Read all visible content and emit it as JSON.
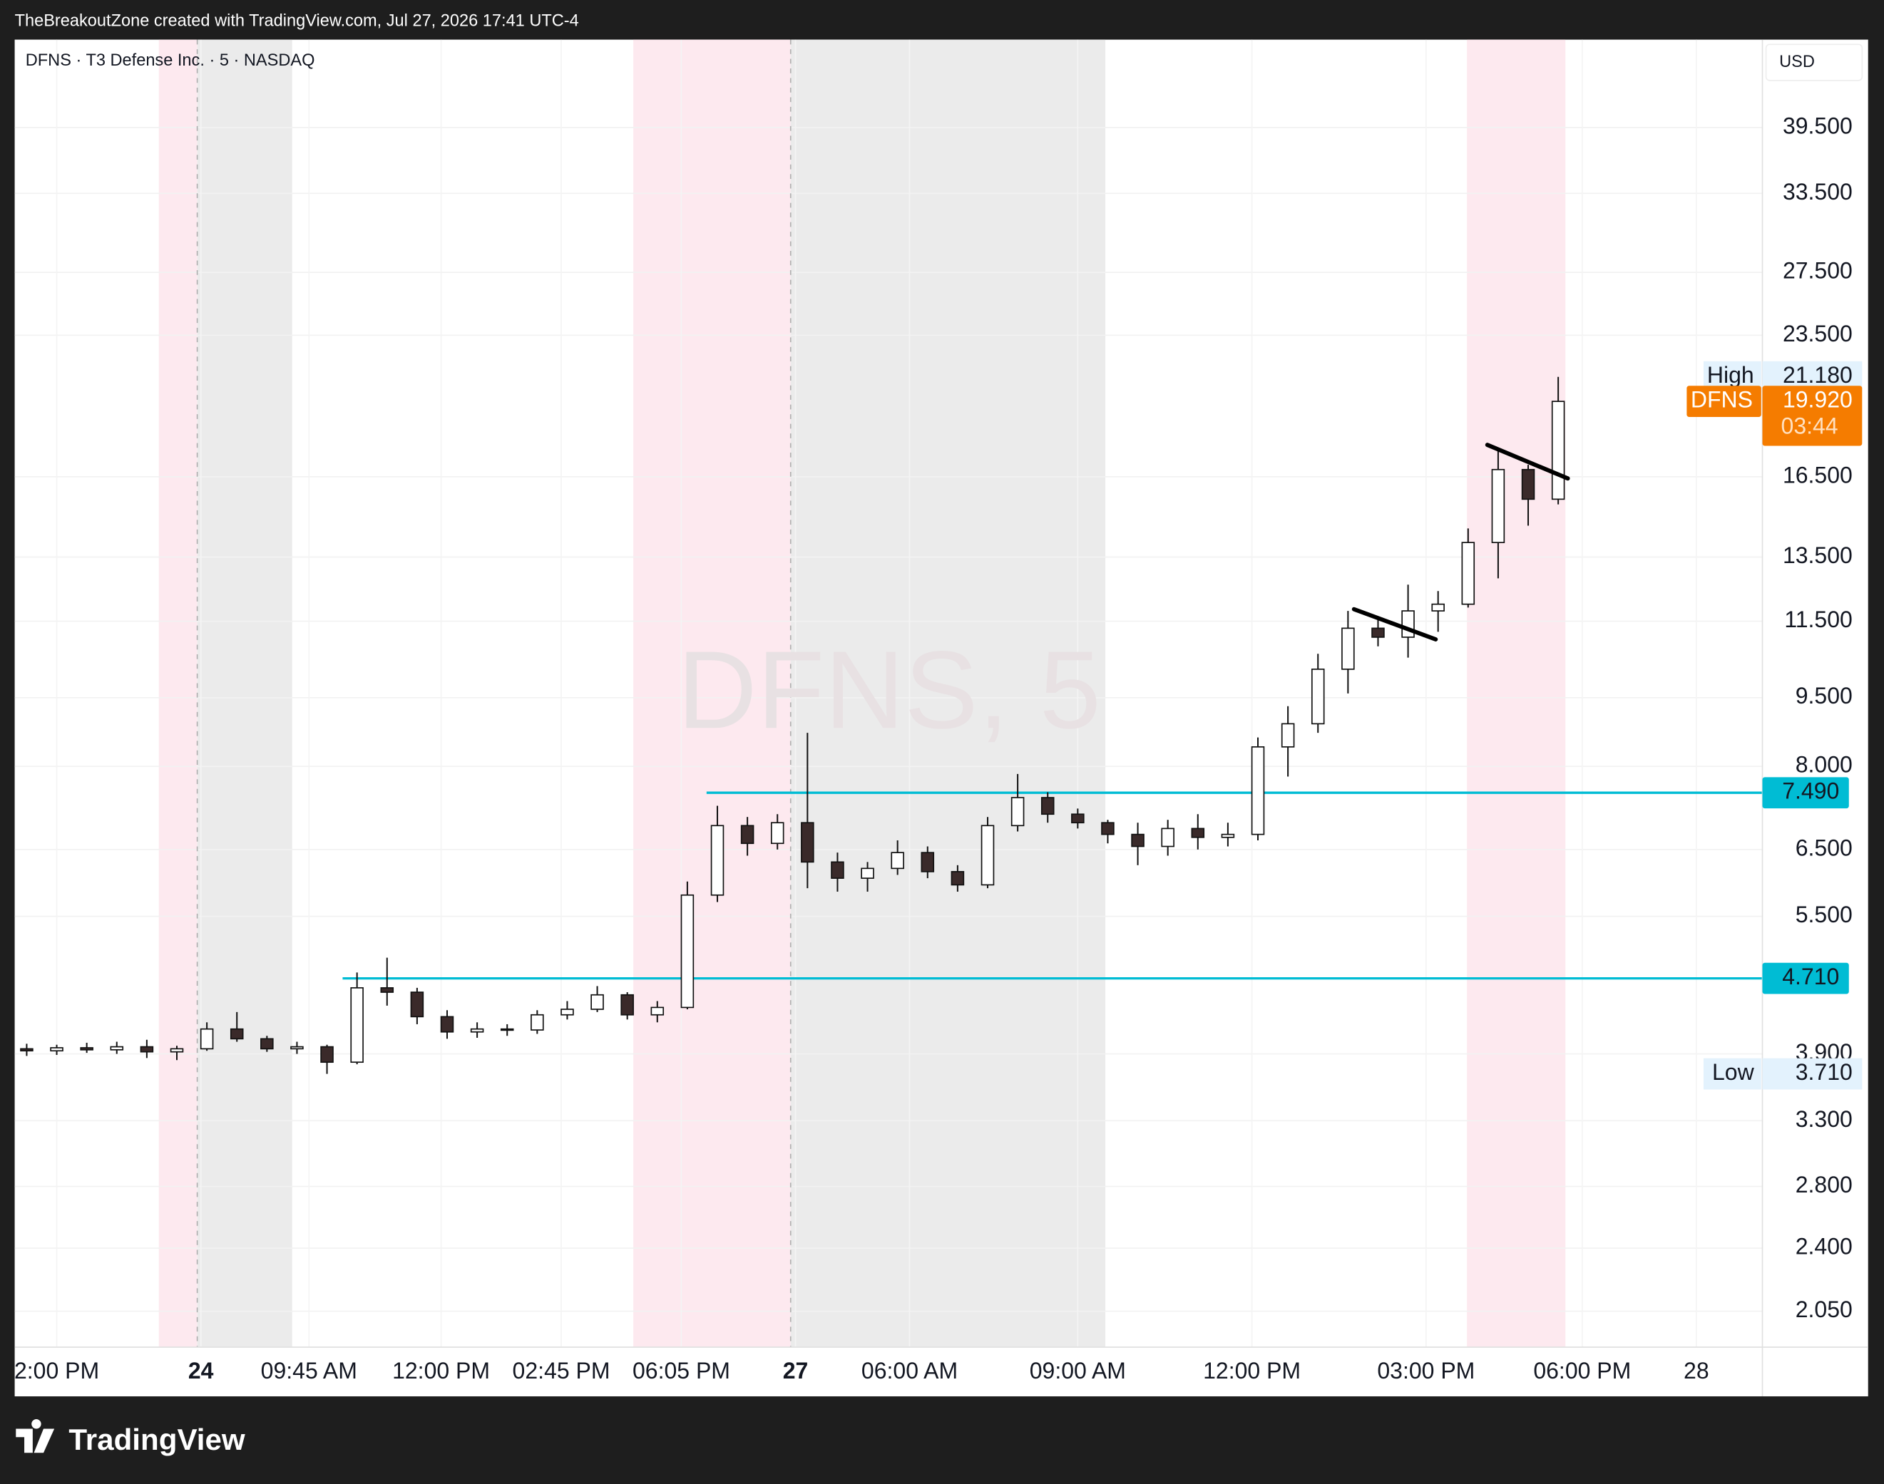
{
  "chart_data": {
    "type": "candlestick",
    "attribution": "TheBreakoutZone created with TradingView.com, Jul 27, 2026 17:41 UTC-4",
    "header": "DFNS · T3 Defense Inc. · 5 · NASDAQ",
    "watermark": "DFNS, 5",
    "currency": "USD",
    "brand": "TradingView",
    "x": [
      2,
      7,
      12,
      17,
      22,
      27,
      32,
      37,
      42,
      47,
      52,
      57,
      62,
      67,
      72,
      77,
      82,
      87,
      92,
      97,
      102,
      107,
      112,
      117,
      122,
      127,
      132,
      137,
      142,
      147,
      152,
      157,
      162,
      167,
      172,
      177,
      182,
      187,
      192,
      197,
      202,
      207,
      212,
      217,
      222,
      227,
      232,
      237,
      242,
      247,
      252,
      257
    ],
    "open": [
      3.95,
      3.93,
      3.96,
      3.94,
      3.97,
      3.92,
      3.95,
      4.15,
      4.05,
      3.95,
      3.97,
      3.82,
      4.6,
      4.55,
      4.28,
      4.12,
      4.15,
      4.14,
      4.3,
      4.36,
      4.52,
      4.3,
      4.38,
      5.8,
      6.9,
      6.6,
      6.95,
      6.3,
      6.05,
      6.2,
      6.45,
      6.15,
      5.95,
      6.9,
      7.4,
      7.1,
      6.95,
      6.75,
      6.55,
      6.85,
      6.7,
      6.75,
      8.4,
      8.9,
      10.2,
      11.3,
      11.05,
      11.8,
      12.0,
      14.0,
      16.8,
      15.6
    ],
    "high": [
      4.0,
      3.99,
      4.01,
      4.02,
      4.04,
      3.98,
      4.22,
      4.33,
      4.08,
      4.02,
      3.99,
      4.78,
      4.96,
      4.6,
      4.35,
      4.22,
      4.2,
      4.35,
      4.45,
      4.62,
      4.55,
      4.45,
      6.0,
      7.25,
      7.05,
      7.1,
      8.7,
      6.45,
      6.3,
      6.65,
      6.55,
      6.25,
      7.05,
      7.85,
      7.5,
      7.2,
      7.0,
      6.95,
      7.0,
      7.1,
      6.95,
      8.6,
      9.3,
      10.6,
      11.8,
      11.6,
      12.6,
      12.4,
      14.5,
      17.6,
      17.0,
      21.18
    ],
    "low": [
      3.88,
      3.89,
      3.91,
      3.9,
      3.86,
      3.84,
      3.93,
      4.02,
      3.92,
      3.9,
      3.71,
      3.8,
      4.4,
      4.2,
      4.05,
      4.06,
      4.08,
      4.1,
      4.25,
      4.33,
      4.25,
      4.22,
      4.36,
      5.7,
      6.4,
      6.5,
      5.9,
      5.85,
      5.85,
      6.1,
      6.05,
      5.85,
      5.9,
      6.8,
      6.95,
      6.85,
      6.6,
      6.25,
      6.4,
      6.5,
      6.55,
      6.65,
      7.8,
      8.7,
      9.6,
      10.8,
      10.5,
      11.2,
      11.9,
      12.8,
      14.6,
      15.4
    ],
    "close": [
      3.93,
      3.96,
      3.94,
      3.97,
      3.92,
      3.95,
      4.15,
      4.05,
      3.95,
      3.97,
      3.82,
      4.6,
      4.55,
      4.28,
      4.12,
      4.15,
      4.14,
      4.3,
      4.36,
      4.52,
      4.3,
      4.38,
      5.8,
      6.9,
      6.6,
      6.95,
      6.3,
      6.05,
      6.2,
      6.45,
      6.15,
      5.95,
      6.9,
      7.4,
      7.1,
      6.95,
      6.75,
      6.55,
      6.85,
      6.7,
      6.75,
      8.4,
      8.9,
      10.2,
      11.3,
      11.05,
      11.8,
      12.0,
      14.0,
      16.8,
      15.6,
      19.92
    ],
    "up_color": "#ffffff",
    "down_color": "#3a2a2a",
    "outline_color": "#111111",
    "xlim": [
      0,
      291
    ],
    "xticks": [
      {
        "value": 7,
        "label": "2:00 PM"
      },
      {
        "value": 31,
        "label": "24",
        "bold": true
      },
      {
        "value": 49,
        "label": "09:45 AM"
      },
      {
        "value": 71,
        "label": "12:00 PM"
      },
      {
        "value": 91,
        "label": "02:45 PM"
      },
      {
        "value": 111,
        "label": "06:05 PM"
      },
      {
        "value": 130,
        "label": "27",
        "bold": true
      },
      {
        "value": 149,
        "label": "06:00 AM"
      },
      {
        "value": 177,
        "label": "09:00 AM"
      },
      {
        "value": 206,
        "label": "12:00 PM"
      },
      {
        "value": 235,
        "label": "03:00 PM"
      },
      {
        "value": 261,
        "label": "06:00 PM"
      },
      {
        "value": 280,
        "label": "28"
      }
    ],
    "ylim": [
      1.874,
      49.2
    ],
    "log_scale": true,
    "grid": true,
    "yticks": [
      {
        "value": 2.05,
        "label": "2.050"
      },
      {
        "value": 2.4,
        "label": "2.400"
      },
      {
        "value": 2.8,
        "label": "2.800"
      },
      {
        "value": 3.3,
        "label": "3.300"
      },
      {
        "value": 3.9,
        "label": "3.900"
      },
      {
        "value": 5.5,
        "label": "5.500"
      },
      {
        "value": 6.5,
        "label": "6.500"
      },
      {
        "value": 8,
        "label": "8.000"
      },
      {
        "value": 9.5,
        "label": "9.500"
      },
      {
        "value": 11.5,
        "label": "11.500"
      },
      {
        "value": 13.5,
        "label": "13.500"
      },
      {
        "value": 16.5,
        "label": "16.500"
      },
      {
        "value": 23.5,
        "label": "23.500"
      },
      {
        "value": 27.5,
        "label": "27.500"
      },
      {
        "value": 33.5,
        "label": "33.500"
      },
      {
        "value": 39.5,
        "label": "39.500"
      }
    ],
    "levels": [
      {
        "value": 7.49,
        "label": "7.490",
        "x_start": 115.2,
        "color": "#00bcd4"
      },
      {
        "value": 4.71,
        "label": "4.710",
        "x_start": 54.6,
        "color": "#00bcd4"
      }
    ],
    "trendlines": [
      {
        "x": [
          223,
          236.6
        ],
        "y": [
          11.85,
          10.99
        ],
        "color": "#000000"
      },
      {
        "x": [
          245.2,
          258.6
        ],
        "y": [
          17.87,
          16.43
        ],
        "color": "#000000"
      }
    ],
    "high_marker": {
      "name": "High",
      "value": 21.18,
      "label": "21.180"
    },
    "low_marker": {
      "name": "Low",
      "value": 3.71,
      "label": "3.710"
    },
    "last_price": {
      "name": "DFNS",
      "value": 19.92,
      "label": "19.920",
      "countdown": "03:44",
      "color": "#f57c00"
    }
  }
}
